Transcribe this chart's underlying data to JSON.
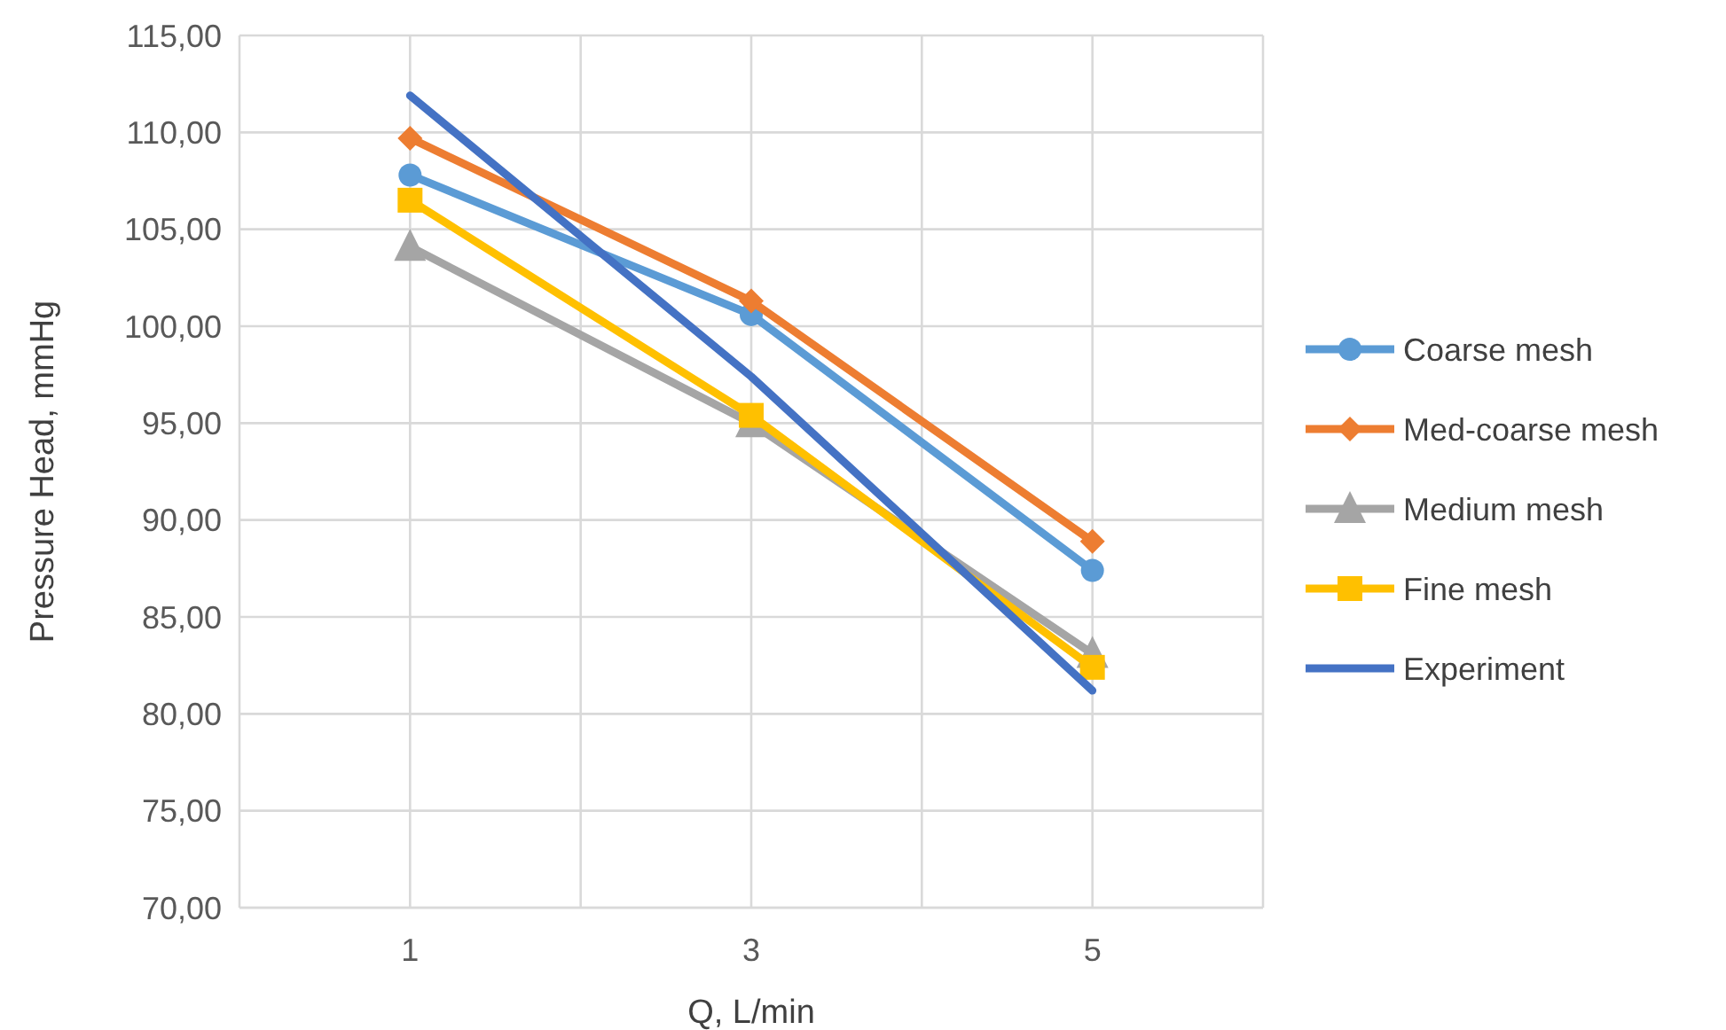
{
  "chart_data": {
    "type": "line",
    "xlabel": "Q, L/min",
    "ylabel": "Pressure Head, mmHg",
    "x": [
      1,
      3,
      5
    ],
    "xlim": [
      0,
      6
    ],
    "xticks": [
      {
        "value": 0,
        "label": null
      },
      1,
      {
        "value": 2,
        "label": null
      },
      3,
      {
        "value": 4,
        "label": null
      },
      5,
      {
        "value": 6,
        "label": null
      }
    ],
    "ylim": [
      70,
      115
    ],
    "yticks": [
      {
        "value": 70,
        "label": "70,00"
      },
      {
        "value": 75,
        "label": "75,00"
      },
      {
        "value": 80,
        "label": "80,00"
      },
      {
        "value": 85,
        "label": "85,00"
      },
      {
        "value": 90,
        "label": "90,00"
      },
      {
        "value": 95,
        "label": "95,00"
      },
      {
        "value": 100,
        "label": "100,00"
      },
      {
        "value": 105,
        "label": "105,00"
      },
      {
        "value": 110,
        "label": "110,00"
      },
      {
        "value": 115,
        "label": "115,00"
      }
    ],
    "grid": true,
    "legend": "right",
    "series": [
      {
        "name": "Coarse mesh",
        "color": "#5b9bd5",
        "marker": "circle",
        "values": [
          107.8,
          100.6,
          87.4
        ]
      },
      {
        "name": "Med-coarse mesh",
        "color": "#ed7d31",
        "marker": "diamond",
        "values": [
          109.7,
          101.3,
          88.9
        ]
      },
      {
        "name": "Medium mesh",
        "color": "#a5a5a5",
        "marker": "triangle",
        "values": [
          104.1,
          95.0,
          83.1
        ]
      },
      {
        "name": "Fine mesh",
        "color": "#ffc000",
        "marker": "square",
        "values": [
          106.5,
          95.4,
          82.4
        ]
      },
      {
        "name": "Experiment",
        "color": "#4472c4",
        "marker": "none",
        "values": [
          111.9,
          97.4,
          81.2
        ]
      }
    ]
  }
}
